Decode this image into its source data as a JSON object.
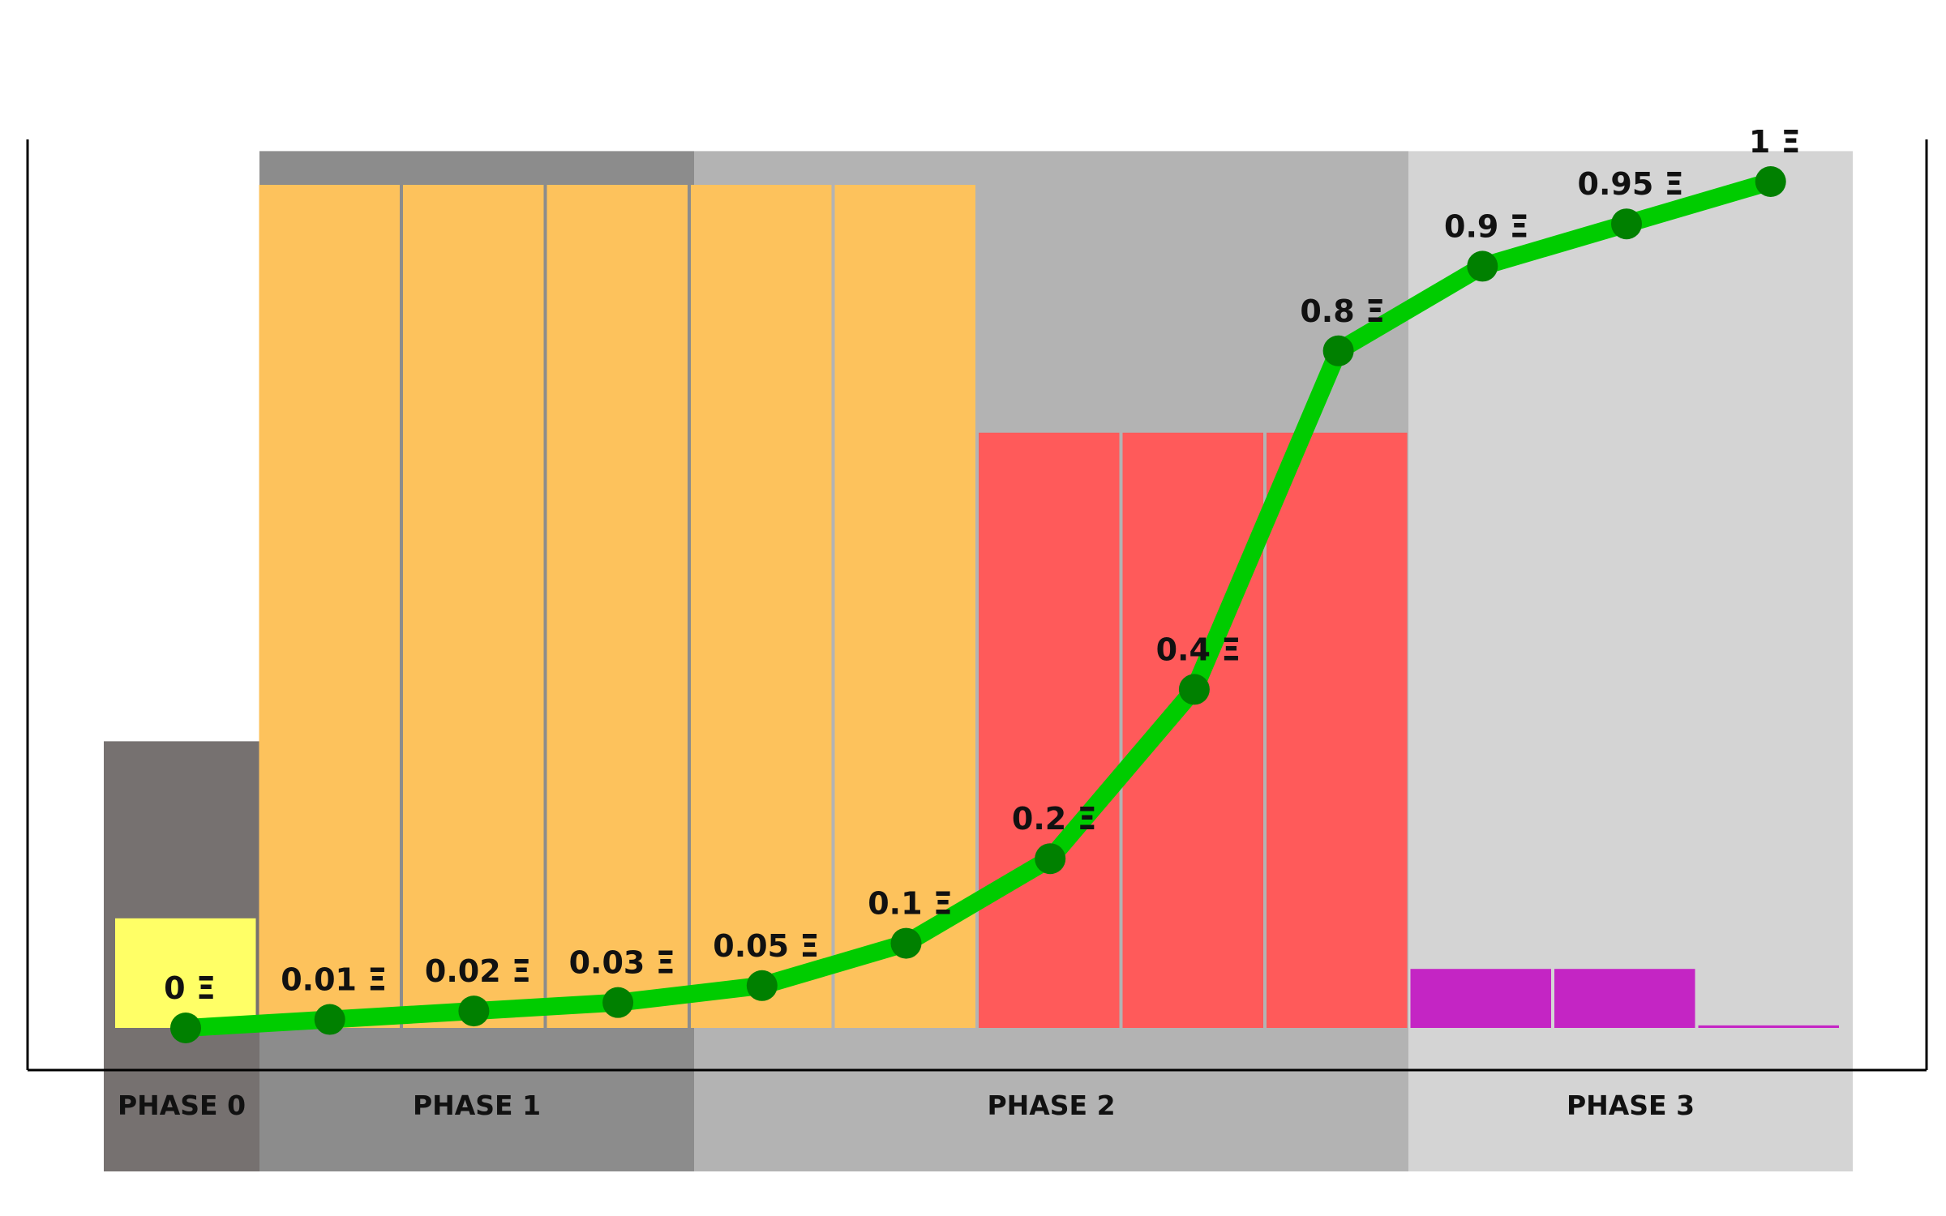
{
  "chart_data": {
    "type": "bar",
    "phases": [
      {
        "name": "PHASE 0",
        "color": "#767170",
        "height": 0.34
      },
      {
        "name": "PHASE 1",
        "color": "#8c8c8c",
        "height": 1.04
      },
      {
        "name": "PHASE 2",
        "color": "#b3b3b3",
        "height": 1.04
      },
      {
        "name": "PHASE 3",
        "color": "#d4d4d4",
        "height": 1.04
      }
    ],
    "bars": [
      {
        "phase": 0,
        "value": 0.13,
        "color": "#ffff66"
      },
      {
        "phase": 1,
        "value": 1.0,
        "color": "#fdc25c"
      },
      {
        "phase": 1,
        "value": 1.0,
        "color": "#fdc25c"
      },
      {
        "phase": 1,
        "value": 1.0,
        "color": "#fdc25c"
      },
      {
        "phase": 2,
        "value": 1.0,
        "color": "#fdc25c"
      },
      {
        "phase": 2,
        "value": 1.0,
        "color": "#fdc25c"
      },
      {
        "phase": 2,
        "value": 0.706,
        "color": "#ff5a5a"
      },
      {
        "phase": 2,
        "value": 0.706,
        "color": "#ff5a5a"
      },
      {
        "phase": 2,
        "value": 0.706,
        "color": "#ff5a5a"
      },
      {
        "phase": 3,
        "value": 0.07,
        "color": "#c425c4"
      },
      {
        "phase": 3,
        "value": 0.07,
        "color": "#c425c4"
      },
      {
        "phase": 3,
        "value": 0.003,
        "color": "#c425c4"
      }
    ],
    "price_line": {
      "color": "#00cc00",
      "point_color": "#008000",
      "values": [
        0,
        0.01,
        0.02,
        0.03,
        0.05,
        0.1,
        0.2,
        0.4,
        0.8,
        0.9,
        0.95,
        1
      ],
      "labels": [
        "0 Ξ",
        "0.01 Ξ",
        "0.02 Ξ",
        "0.03 Ξ",
        "0.05 Ξ",
        "0.1 Ξ",
        "0.2 Ξ",
        "0.4 Ξ",
        "0.8 Ξ",
        "0.9 Ξ",
        "0.95 Ξ",
        "1 Ξ"
      ]
    }
  }
}
